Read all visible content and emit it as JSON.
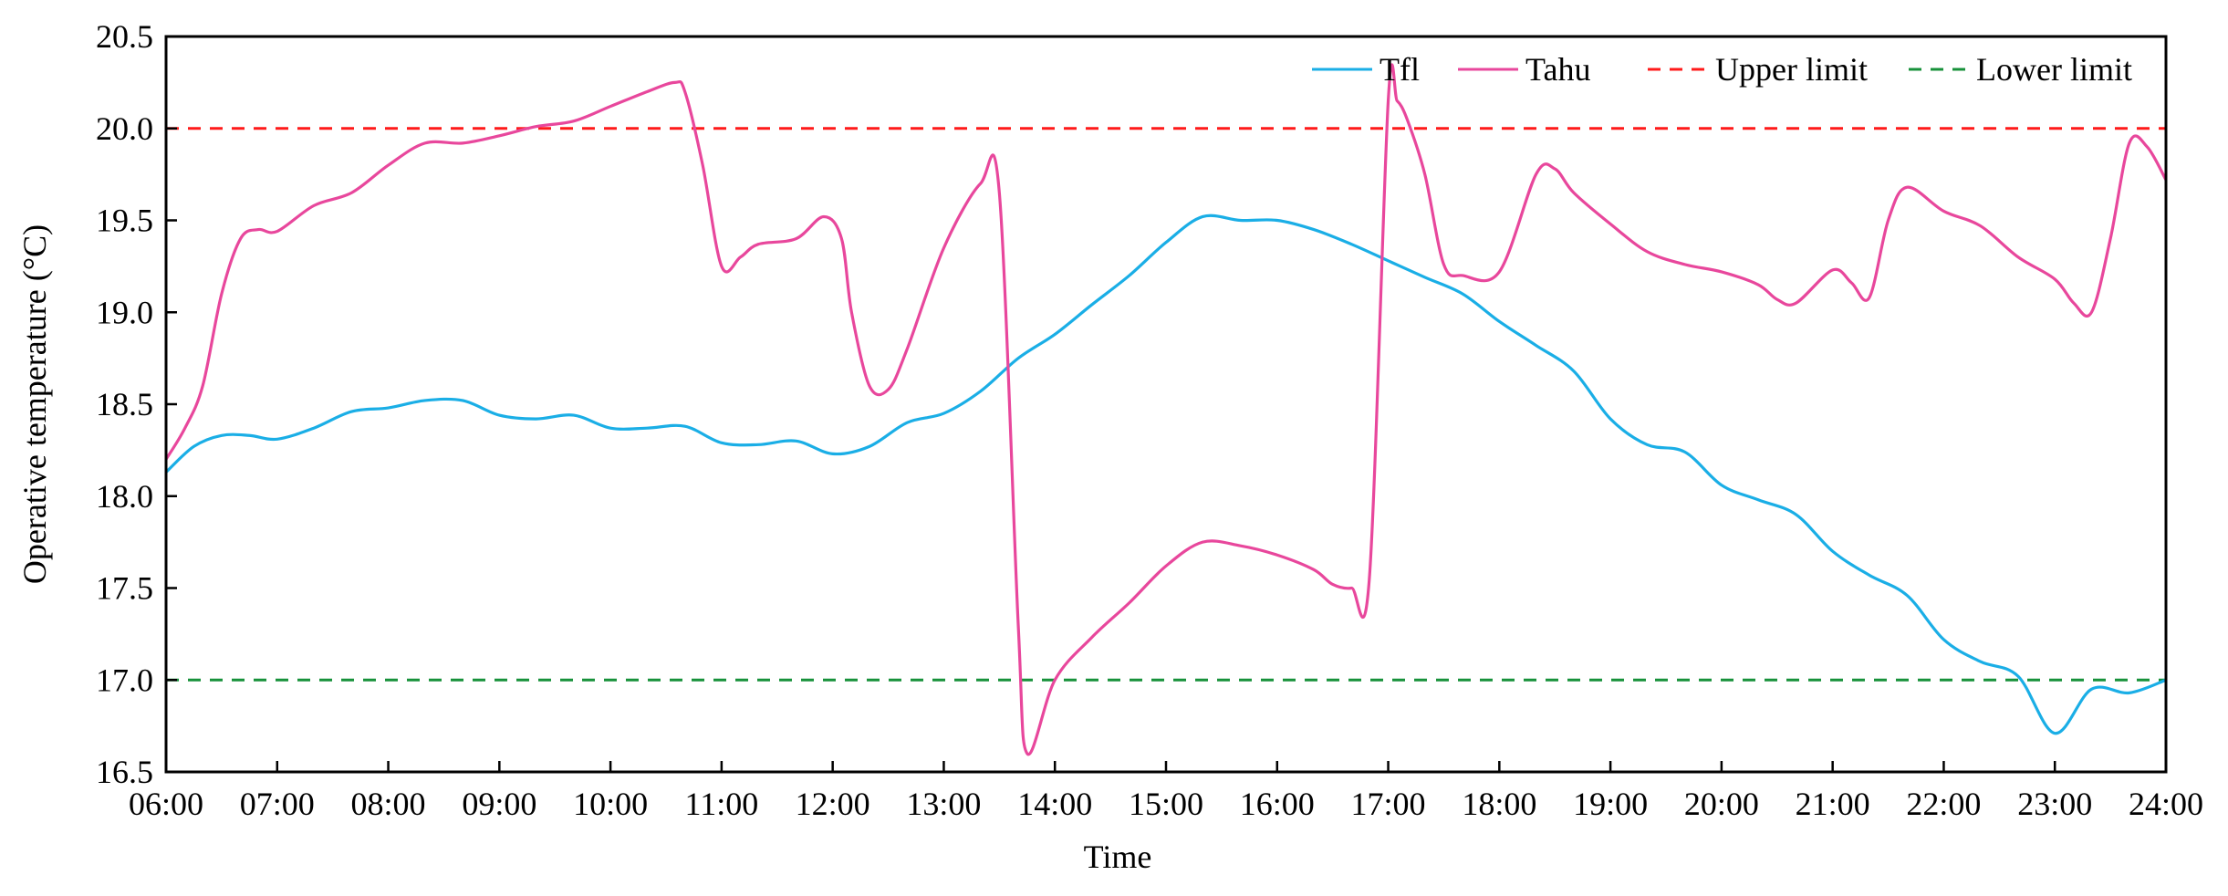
{
  "chart_data": {
    "type": "line",
    "xlabel": "Time",
    "ylabel": "Operative temperature (°C)",
    "x_ticks": [
      "06:00",
      "07:00",
      "08:00",
      "09:00",
      "10:00",
      "11:00",
      "12:00",
      "13:00",
      "14:00",
      "15:00",
      "16:00",
      "17:00",
      "18:00",
      "19:00",
      "20:00",
      "21:00",
      "22:00",
      "23:00",
      "24:00"
    ],
    "y_ticks": [
      "16.5",
      "17.0",
      "17.5",
      "18.0",
      "18.5",
      "19.0",
      "19.5",
      "20.0",
      "20.5"
    ],
    "xlim": [
      6,
      24
    ],
    "ylim": [
      16.5,
      20.5
    ],
    "grid": false,
    "legend_position": "top-right",
    "series": [
      {
        "name": "Tfl",
        "color": "#1aaee6",
        "style": "solid",
        "x": [
          6.0,
          6.25,
          6.5,
          6.75,
          7.0,
          7.33,
          7.67,
          8.0,
          8.33,
          8.67,
          9.0,
          9.33,
          9.67,
          10.0,
          10.33,
          10.67,
          11.0,
          11.33,
          11.67,
          12.0,
          12.33,
          12.67,
          13.0,
          13.33,
          13.67,
          14.0,
          14.33,
          14.67,
          15.0,
          15.33,
          15.67,
          16.0,
          16.33,
          16.67,
          17.0,
          17.33,
          17.67,
          18.0,
          18.33,
          18.67,
          19.0,
          19.33,
          19.67,
          20.0,
          20.33,
          20.67,
          21.0,
          21.33,
          21.67,
          22.0,
          22.33,
          22.67,
          23.0,
          23.33,
          23.67,
          24.0
        ],
        "values": [
          18.13,
          18.27,
          18.33,
          18.33,
          18.31,
          18.37,
          18.46,
          18.48,
          18.52,
          18.52,
          18.44,
          18.42,
          18.44,
          18.37,
          18.37,
          18.38,
          18.29,
          18.28,
          18.3,
          18.23,
          18.27,
          18.4,
          18.45,
          18.57,
          18.75,
          18.88,
          19.04,
          19.2,
          19.38,
          19.52,
          19.5,
          19.5,
          19.45,
          19.37,
          19.28,
          19.19,
          19.1,
          18.95,
          18.82,
          18.68,
          18.42,
          18.28,
          18.24,
          18.06,
          17.98,
          17.9,
          17.7,
          17.57,
          17.46,
          17.22,
          17.1,
          17.02,
          16.71,
          16.95,
          16.93,
          17.0
        ]
      },
      {
        "name": "Tahu",
        "color": "#e8479c",
        "style": "solid",
        "x": [
          6.0,
          6.17,
          6.33,
          6.5,
          6.67,
          6.83,
          7.0,
          7.33,
          7.67,
          8.0,
          8.33,
          8.67,
          9.0,
          9.33,
          9.67,
          10.0,
          10.33,
          10.58,
          10.67,
          10.83,
          11.0,
          11.17,
          11.33,
          11.67,
          11.92,
          12.08,
          12.17,
          12.33,
          12.5,
          12.67,
          13.0,
          13.33,
          13.5,
          13.67,
          13.75,
          14.0,
          14.33,
          14.67,
          15.0,
          15.33,
          15.67,
          16.0,
          16.33,
          16.5,
          16.67,
          16.83,
          17.0,
          17.08,
          17.17,
          17.33,
          17.5,
          17.67,
          18.0,
          18.33,
          18.5,
          18.67,
          19.0,
          19.33,
          19.67,
          20.0,
          20.33,
          20.5,
          20.67,
          21.0,
          21.17,
          21.33,
          21.5,
          21.67,
          22.0,
          22.33,
          22.67,
          23.0,
          23.17,
          23.33,
          23.5,
          23.67,
          23.83,
          24.0
        ],
        "values": [
          18.2,
          18.37,
          18.6,
          19.1,
          19.4,
          19.45,
          19.44,
          19.58,
          19.65,
          19.8,
          19.92,
          19.92,
          19.96,
          20.01,
          20.04,
          20.12,
          20.2,
          20.25,
          20.2,
          19.8,
          19.25,
          19.3,
          19.37,
          19.4,
          19.52,
          19.4,
          19.0,
          18.6,
          18.58,
          18.8,
          19.35,
          19.7,
          19.65,
          17.3,
          16.6,
          17.0,
          17.23,
          17.42,
          17.62,
          17.75,
          17.73,
          17.68,
          17.6,
          17.52,
          17.5,
          17.55,
          20.15,
          20.15,
          20.05,
          19.75,
          19.26,
          19.2,
          19.22,
          19.75,
          19.78,
          19.65,
          19.48,
          19.33,
          19.26,
          19.22,
          19.15,
          19.07,
          19.05,
          19.23,
          19.16,
          19.08,
          19.5,
          19.68,
          19.55,
          19.47,
          19.3,
          19.18,
          19.05,
          19.0,
          19.4,
          19.92,
          19.9,
          19.72
        ]
      },
      {
        "name": "Upper limit",
        "color": "#ff1a1a",
        "style": "dashed",
        "x": [
          6,
          24
        ],
        "values": [
          20.0,
          20.0
        ]
      },
      {
        "name": "Lower limit",
        "color": "#17913a",
        "style": "dashed",
        "x": [
          6,
          24
        ],
        "values": [
          17.0,
          17.0
        ]
      }
    ]
  }
}
